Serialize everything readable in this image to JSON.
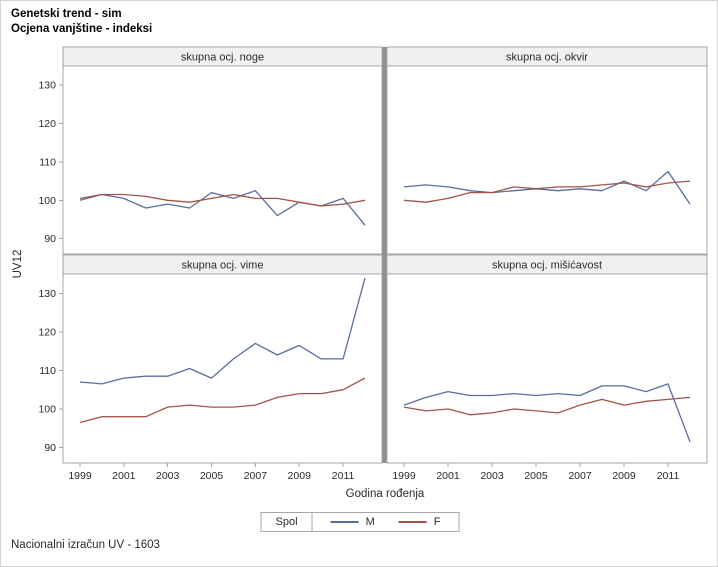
{
  "title": {
    "line1": "Genetski trend - sim",
    "line2": "Ocjena vanjštine - indeksi"
  },
  "footer": {
    "note": "Nacionalni izračun UV - 1603"
  },
  "axes": {
    "ylabel": "UV12",
    "xlabel": "Godina rođenja",
    "y_ticks": [
      90,
      100,
      110,
      120,
      130
    ],
    "x_ticks": [
      1999,
      2001,
      2003,
      2005,
      2007,
      2009,
      2011
    ]
  },
  "legend": {
    "title": "Spol",
    "entries": [
      {
        "label": "M",
        "color": "#5b6d9f"
      },
      {
        "label": "F",
        "color": "#a2544a"
      }
    ]
  },
  "chart_data": {
    "type": "line",
    "title": "Genetski trend - sim",
    "subtitle": "Ocjena vanjštine - indeksi",
    "xlabel": "Godina rođenja",
    "ylabel": "UV12",
    "xlim": [
      1999,
      2012
    ],
    "ylim": [
      86,
      135
    ],
    "grid": false,
    "legend_position": "bottom",
    "x": [
      1999,
      2000,
      2001,
      2002,
      2003,
      2004,
      2005,
      2006,
      2007,
      2008,
      2009,
      2010,
      2011,
      2012
    ],
    "panels": [
      {
        "title": "skupna ocj. noge",
        "series": [
          {
            "name": "M",
            "values": [
              100.5,
              101.5,
              100.5,
              98,
              99,
              98,
              102,
              100.5,
              102.5,
              96,
              99.5,
              98.5,
              100.5,
              93.5
            ]
          },
          {
            "name": "F",
            "values": [
              100,
              101.5,
              101.5,
              101,
              100,
              99.5,
              100.5,
              101.5,
              100.5,
              100.5,
              99.5,
              98.5,
              99,
              100
            ]
          }
        ]
      },
      {
        "title": "skupna ocj. okvir",
        "series": [
          {
            "name": "M",
            "values": [
              103.5,
              104,
              103.5,
              102.5,
              102,
              102.5,
              103,
              102.5,
              103,
              102.5,
              105,
              102.5,
              107.5,
              99
            ]
          },
          {
            "name": "F",
            "values": [
              100,
              99.5,
              100.5,
              102,
              102,
              103.5,
              103,
              103.5,
              103.5,
              104,
              104.5,
              103.5,
              104.5,
              105
            ]
          }
        ]
      },
      {
        "title": "skupna ocj. vime",
        "series": [
          {
            "name": "M",
            "values": [
              107,
              106.5,
              108,
              108.5,
              108.5,
              110.5,
              108,
              113,
              117,
              114,
              116.5,
              113,
              113,
              134
            ]
          },
          {
            "name": "F",
            "values": [
              96.5,
              98,
              98,
              98,
              100.5,
              101,
              100.5,
              100.5,
              101,
              103,
              104,
              104,
              105,
              108
            ]
          }
        ]
      },
      {
        "title": "skupna ocj. mišićavost",
        "series": [
          {
            "name": "M",
            "values": [
              101,
              103,
              104.5,
              103.5,
              103.5,
              104,
              103.5,
              104,
              103.5,
              106,
              106,
              104.5,
              106.5,
              91.5
            ]
          },
          {
            "name": "F",
            "values": [
              100.5,
              99.5,
              100,
              98.5,
              99,
              100,
              99.5,
              99,
              101,
              102.5,
              101,
              102,
              102.5,
              103
            ]
          }
        ]
      }
    ]
  }
}
